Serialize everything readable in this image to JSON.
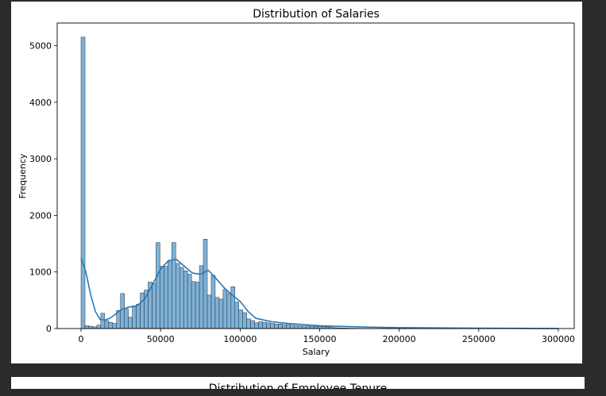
{
  "chart_data": {
    "type": "bar",
    "title": "Distribution of Salaries",
    "xlabel": "Salary",
    "ylabel": "Frequency",
    "xlim": [
      -15000,
      310000
    ],
    "ylim": [
      0,
      5400
    ],
    "xticks": [
      0,
      50000,
      100000,
      150000,
      200000,
      250000,
      300000
    ],
    "xtick_labels": [
      "0",
      "50000",
      "100000",
      "150000",
      "200000",
      "250000",
      "300000"
    ],
    "yticks": [
      0,
      1000,
      2000,
      3000,
      4000,
      5000
    ],
    "ytick_labels": [
      "0",
      "1000",
      "2000",
      "3000",
      "4000",
      "5000"
    ],
    "bin_width": 2480,
    "bins_start": 0,
    "bar_color": "#7fb1d6",
    "edge_color": "#1f2f3f",
    "kde_color": "#2878b5",
    "grid": false,
    "values": [
      5150,
      50,
      40,
      30,
      60,
      270,
      140,
      110,
      90,
      320,
      620,
      350,
      200,
      400,
      430,
      630,
      680,
      820,
      800,
      1520,
      1100,
      1100,
      1180,
      1520,
      1150,
      1080,
      1020,
      960,
      830,
      820,
      1110,
      1580,
      590,
      940,
      550,
      520,
      690,
      620,
      740,
      470,
      330,
      280,
      170,
      140,
      100,
      120,
      110,
      100,
      90,
      80,
      80,
      70,
      70,
      60,
      55,
      50,
      45,
      45,
      40,
      40,
      40,
      35,
      30,
      20,
      15,
      12,
      10,
      8,
      6,
      5,
      4,
      4,
      3,
      3,
      2,
      2,
      2,
      2,
      1,
      1,
      1,
      1,
      1,
      1,
      1,
      1,
      1,
      1,
      1,
      1,
      1,
      1,
      1,
      1,
      1,
      1,
      1,
      1,
      1,
      1,
      1,
      1,
      1,
      1,
      1,
      1,
      1,
      1,
      1,
      1,
      1,
      1,
      1,
      1,
      1,
      1,
      1,
      1
    ],
    "kde": {
      "x": [
        0,
        3000,
        6000,
        9000,
        12000,
        15000,
        18000,
        21000,
        25000,
        30000,
        35000,
        40000,
        45000,
        50000,
        55000,
        60000,
        65000,
        70000,
        75000,
        80000,
        85000,
        90000,
        95000,
        100000,
        105000,
        110000,
        120000,
        130000,
        140000,
        150000,
        160000,
        180000,
        200000,
        250000,
        300000
      ],
      "y": [
        1250,
        1000,
        600,
        300,
        160,
        150,
        180,
        240,
        330,
        380,
        400,
        520,
        780,
        1050,
        1200,
        1220,
        1100,
        980,
        960,
        1030,
        880,
        720,
        590,
        480,
        300,
        180,
        120,
        90,
        70,
        50,
        40,
        25,
        15,
        5,
        2
      ]
    }
  },
  "next_chart": {
    "title": "Distribution of Employee Tenure"
  }
}
